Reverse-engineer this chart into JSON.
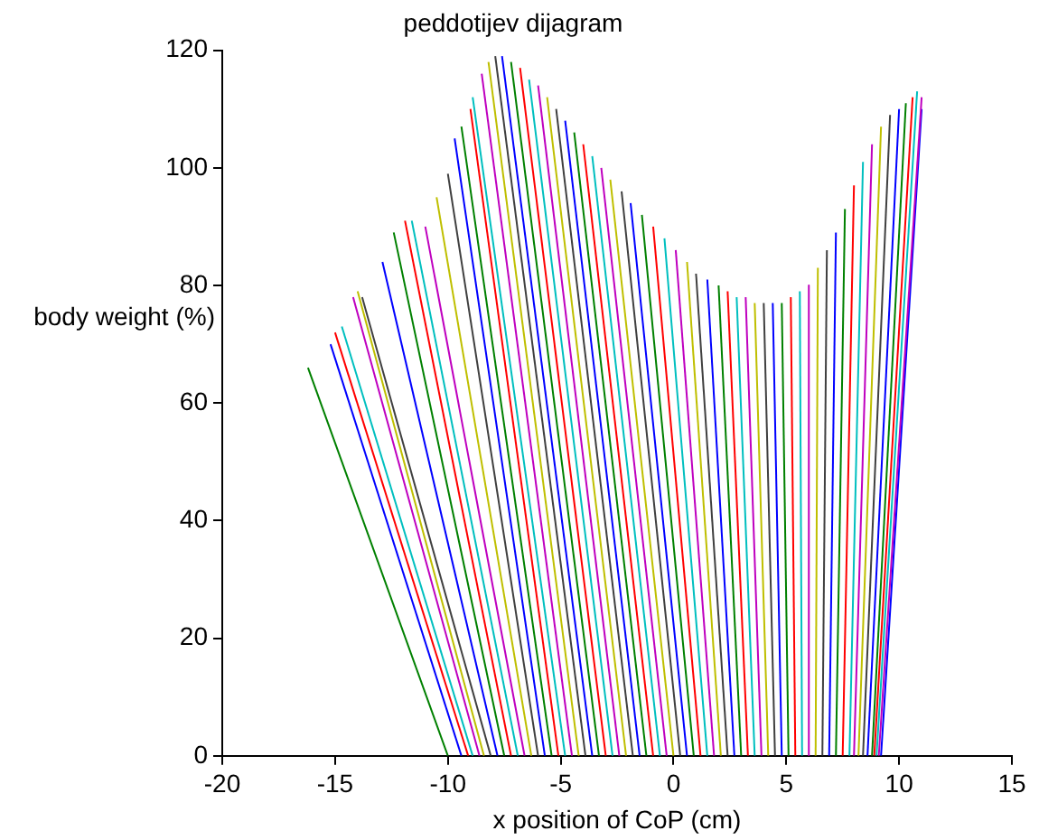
{
  "chart_data": {
    "type": "line",
    "title": "peddotijev dijagram",
    "xlabel": "x position of CoP (cm)",
    "ylabel": "body weight (%)",
    "xlim": [
      -20,
      15
    ],
    "xticks": [
      -20,
      -15,
      -10,
      -5,
      0,
      5,
      10,
      15
    ],
    "ylim": [
      0,
      120
    ],
    "yticks": [
      0,
      20,
      40,
      60,
      80,
      100,
      120
    ],
    "grid": false,
    "legend": false,
    "marker": "none",
    "series": [
      {
        "color": "#008000",
        "x": [
          -16.2,
          -10.0
        ],
        "values": [
          66,
          0
        ]
      },
      {
        "color": "#0000ff",
        "x": [
          -15.2,
          -9.4
        ],
        "values": [
          70,
          0
        ]
      },
      {
        "color": "#ff0000",
        "x": [
          -15.0,
          -9.1
        ],
        "values": [
          72,
          0
        ]
      },
      {
        "color": "#00bfbf",
        "x": [
          -14.7,
          -8.9
        ],
        "values": [
          73,
          0
        ]
      },
      {
        "color": "#bf00bf",
        "x": [
          -14.2,
          -8.6
        ],
        "values": [
          78,
          0
        ]
      },
      {
        "color": "#bfbf00",
        "x": [
          -14.0,
          -8.4
        ],
        "values": [
          79,
          0
        ]
      },
      {
        "color": "#404040",
        "x": [
          -13.8,
          -8.1
        ],
        "values": [
          78,
          0
        ]
      },
      {
        "color": "#0000ff",
        "x": [
          -12.9,
          -7.8
        ],
        "values": [
          84,
          0
        ]
      },
      {
        "color": "#008000",
        "x": [
          -12.4,
          -7.5
        ],
        "values": [
          89,
          0
        ]
      },
      {
        "color": "#ff0000",
        "x": [
          -11.9,
          -7.2
        ],
        "values": [
          91,
          0
        ]
      },
      {
        "color": "#00bfbf",
        "x": [
          -11.6,
          -6.9
        ],
        "values": [
          91,
          0
        ]
      },
      {
        "color": "#bf00bf",
        "x": [
          -11.0,
          -6.6
        ],
        "values": [
          90,
          0
        ]
      },
      {
        "color": "#bfbf00",
        "x": [
          -10.5,
          -6.3
        ],
        "values": [
          95,
          0
        ]
      },
      {
        "color": "#404040",
        "x": [
          -10.0,
          -6.0
        ],
        "values": [
          99,
          0
        ]
      },
      {
        "color": "#0000ff",
        "x": [
          -9.7,
          -5.7
        ],
        "values": [
          105,
          0
        ]
      },
      {
        "color": "#008000",
        "x": [
          -9.4,
          -5.4
        ],
        "values": [
          107,
          0
        ]
      },
      {
        "color": "#ff0000",
        "x": [
          -9.0,
          -5.1
        ],
        "values": [
          110,
          0
        ]
      },
      {
        "color": "#00bfbf",
        "x": [
          -8.9,
          -4.8
        ],
        "values": [
          112,
          0
        ]
      },
      {
        "color": "#bf00bf",
        "x": [
          -8.5,
          -4.5
        ],
        "values": [
          116,
          0
        ]
      },
      {
        "color": "#bfbf00",
        "x": [
          -8.2,
          -4.2
        ],
        "values": [
          118,
          0
        ]
      },
      {
        "color": "#404040",
        "x": [
          -7.9,
          -3.9
        ],
        "values": [
          119,
          0
        ]
      },
      {
        "color": "#0000ff",
        "x": [
          -7.6,
          -3.6
        ],
        "values": [
          119,
          0
        ]
      },
      {
        "color": "#008000",
        "x": [
          -7.2,
          -3.3
        ],
        "values": [
          118,
          0
        ]
      },
      {
        "color": "#ff0000",
        "x": [
          -6.8,
          -3.0
        ],
        "values": [
          117,
          0
        ]
      },
      {
        "color": "#00bfbf",
        "x": [
          -6.4,
          -2.7
        ],
        "values": [
          115,
          0
        ]
      },
      {
        "color": "#bf00bf",
        "x": [
          -6.0,
          -2.4
        ],
        "values": [
          114,
          0
        ]
      },
      {
        "color": "#bfbf00",
        "x": [
          -5.6,
          -2.1
        ],
        "values": [
          112,
          0
        ]
      },
      {
        "color": "#404040",
        "x": [
          -5.2,
          -1.8
        ],
        "values": [
          110,
          0
        ]
      },
      {
        "color": "#0000ff",
        "x": [
          -4.8,
          -1.5
        ],
        "values": [
          108,
          0
        ]
      },
      {
        "color": "#008000",
        "x": [
          -4.4,
          -1.2
        ],
        "values": [
          106,
          0
        ]
      },
      {
        "color": "#ff0000",
        "x": [
          -4.0,
          -0.9
        ],
        "values": [
          104,
          0
        ]
      },
      {
        "color": "#00bfbf",
        "x": [
          -3.6,
          -0.6
        ],
        "values": [
          102,
          0
        ]
      },
      {
        "color": "#bf00bf",
        "x": [
          -3.2,
          -0.3
        ],
        "values": [
          100,
          0
        ]
      },
      {
        "color": "#bfbf00",
        "x": [
          -2.8,
          0.0
        ],
        "values": [
          98,
          0
        ]
      },
      {
        "color": "#404040",
        "x": [
          -2.3,
          0.3
        ],
        "values": [
          96,
          0
        ]
      },
      {
        "color": "#0000ff",
        "x": [
          -1.9,
          0.6
        ],
        "values": [
          94,
          0
        ]
      },
      {
        "color": "#008000",
        "x": [
          -1.4,
          0.9
        ],
        "values": [
          92,
          0
        ]
      },
      {
        "color": "#ff0000",
        "x": [
          -0.9,
          1.2
        ],
        "values": [
          90,
          0
        ]
      },
      {
        "color": "#00bfbf",
        "x": [
          -0.4,
          1.5
        ],
        "values": [
          88,
          0
        ]
      },
      {
        "color": "#bf00bf",
        "x": [
          0.1,
          1.8
        ],
        "values": [
          86,
          0
        ]
      },
      {
        "color": "#bfbf00",
        "x": [
          0.6,
          2.1
        ],
        "values": [
          84,
          0
        ]
      },
      {
        "color": "#404040",
        "x": [
          1.0,
          2.4
        ],
        "values": [
          82,
          0
        ]
      },
      {
        "color": "#0000ff",
        "x": [
          1.5,
          2.7
        ],
        "values": [
          81,
          0
        ]
      },
      {
        "color": "#008000",
        "x": [
          2.0,
          3.0
        ],
        "values": [
          80,
          0
        ]
      },
      {
        "color": "#ff0000",
        "x": [
          2.4,
          3.3
        ],
        "values": [
          79,
          0
        ]
      },
      {
        "color": "#00bfbf",
        "x": [
          2.8,
          3.6
        ],
        "values": [
          78,
          0
        ]
      },
      {
        "color": "#bf00bf",
        "x": [
          3.2,
          3.9
        ],
        "values": [
          78,
          0
        ]
      },
      {
        "color": "#bfbf00",
        "x": [
          3.6,
          4.2
        ],
        "values": [
          77,
          0
        ]
      },
      {
        "color": "#404040",
        "x": [
          4.0,
          4.5
        ],
        "values": [
          77,
          0
        ]
      },
      {
        "color": "#0000ff",
        "x": [
          4.4,
          4.8
        ],
        "values": [
          77,
          0
        ]
      },
      {
        "color": "#008000",
        "x": [
          4.8,
          5.1
        ],
        "values": [
          77,
          0
        ]
      },
      {
        "color": "#ff0000",
        "x": [
          5.2,
          5.4
        ],
        "values": [
          78,
          0
        ]
      },
      {
        "color": "#00bfbf",
        "x": [
          5.6,
          5.7
        ],
        "values": [
          79,
          0
        ]
      },
      {
        "color": "#bf00bf",
        "x": [
          6.0,
          6.0
        ],
        "values": [
          80,
          0
        ]
      },
      {
        "color": "#bfbf00",
        "x": [
          6.4,
          6.3
        ],
        "values": [
          83,
          0
        ]
      },
      {
        "color": "#404040",
        "x": [
          6.8,
          6.6
        ],
        "values": [
          86,
          0
        ]
      },
      {
        "color": "#0000ff",
        "x": [
          7.2,
          6.9
        ],
        "values": [
          89,
          0
        ]
      },
      {
        "color": "#008000",
        "x": [
          7.6,
          7.2
        ],
        "values": [
          93,
          0
        ]
      },
      {
        "color": "#ff0000",
        "x": [
          8.0,
          7.5
        ],
        "values": [
          97,
          0
        ]
      },
      {
        "color": "#00bfbf",
        "x": [
          8.4,
          7.8
        ],
        "values": [
          101,
          0
        ]
      },
      {
        "color": "#bf00bf",
        "x": [
          8.8,
          8.0
        ],
        "values": [
          104,
          0
        ]
      },
      {
        "color": "#bfbf00",
        "x": [
          9.2,
          8.2
        ],
        "values": [
          107,
          0
        ]
      },
      {
        "color": "#404040",
        "x": [
          9.6,
          8.4
        ],
        "values": [
          109,
          0
        ]
      },
      {
        "color": "#0000ff",
        "x": [
          10.0,
          8.6
        ],
        "values": [
          110,
          0
        ]
      },
      {
        "color": "#008000",
        "x": [
          10.3,
          8.8
        ],
        "values": [
          111,
          0
        ]
      },
      {
        "color": "#ff0000",
        "x": [
          10.6,
          8.9
        ],
        "values": [
          112,
          0
        ]
      },
      {
        "color": "#00bfbf",
        "x": [
          10.8,
          9.0
        ],
        "values": [
          113,
          0
        ]
      },
      {
        "color": "#bf00bf",
        "x": [
          11.0,
          9.1
        ],
        "values": [
          112,
          0
        ]
      },
      {
        "color": "#0000ff",
        "x": [
          11.0,
          9.2
        ],
        "values": [
          110,
          0
        ]
      }
    ]
  }
}
